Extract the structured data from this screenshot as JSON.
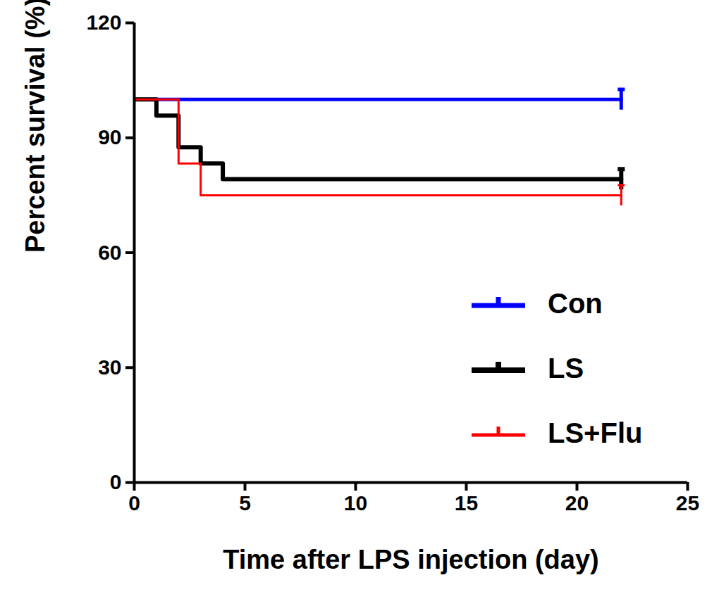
{
  "chart_data": {
    "type": "line",
    "x_label": "Time after LPS injection (day)",
    "y_label": "Percent survival (%)",
    "x": [
      0,
      1,
      2,
      3,
      4,
      22
    ],
    "series": [
      {
        "name": "Con",
        "color": "#0000ff",
        "values": [
          100,
          100,
          100,
          100,
          100,
          100
        ]
      },
      {
        "name": "LS",
        "color": "#000000",
        "values": [
          100,
          95.8,
          87.5,
          83.3,
          79.2,
          79.2
        ]
      },
      {
        "name": "LS+Flu",
        "color": "#ff0000",
        "values": [
          100,
          100,
          83.3,
          75,
          75,
          75
        ]
      }
    ],
    "line_style": "step",
    "marker": "tick",
    "xlim": [
      0,
      25
    ],
    "xticks": [
      0,
      5,
      10,
      15,
      20,
      25
    ],
    "ylim": [
      0,
      120
    ],
    "yticks": [
      0,
      30,
      60,
      90,
      120
    ],
    "grid": false,
    "legend": "lower right"
  }
}
